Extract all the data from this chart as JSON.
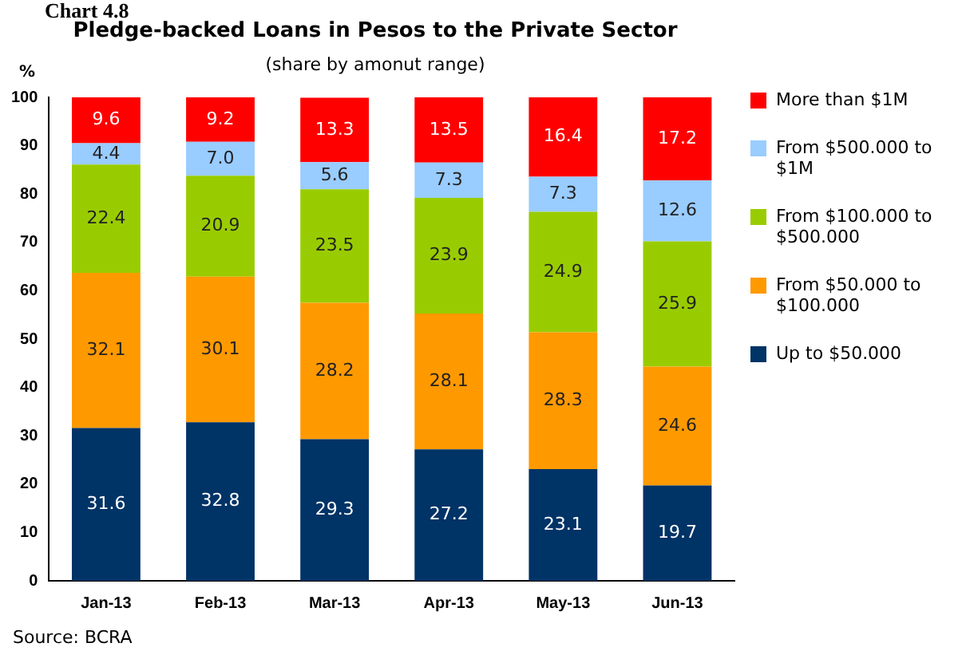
{
  "chart_data": {
    "type": "bar",
    "stacked": true,
    "title": "Pledge-backed Loans in Pesos to the Private Sector",
    "subtitle": "(share by amonut range)",
    "ylabel": "%",
    "annotations": [
      "Chart 4.8",
      "Source: BCRA"
    ],
    "categories": [
      "Jan-13",
      "Feb-13",
      "Mar-13",
      "Apr-13",
      "May-13",
      "Jun-13"
    ],
    "ylim": [
      0,
      100
    ],
    "yticks": [
      0,
      10,
      20,
      30,
      40,
      50,
      60,
      70,
      80,
      90,
      100
    ],
    "grid": false,
    "legend": "right",
    "series": [
      {
        "name": "Up to $50.000",
        "color": "#003366",
        "values": [
          31.6,
          32.8,
          29.3,
          27.2,
          23.1,
          19.7
        ],
        "value_labels": [
          "31.6",
          "32.8",
          "29.3",
          "27.2",
          "23.1",
          "19.7"
        ]
      },
      {
        "name": "From $50.000 to $100.000",
        "color": "#ff9900",
        "values": [
          32.1,
          30.1,
          28.2,
          28.1,
          28.3,
          24.6
        ],
        "value_labels": [
          "32.1",
          "30.1",
          "28.2",
          "28.1",
          "28.3",
          "24.6"
        ]
      },
      {
        "name": "From $100.000 to $500.000",
        "color": "#99cc00",
        "values": [
          22.4,
          20.9,
          23.5,
          23.9,
          24.9,
          25.9
        ],
        "value_labels": [
          "22.4",
          "20.9",
          "23.5",
          "23.9",
          "24.9",
          "25.9"
        ]
      },
      {
        "name": "From $500.000 to $1M",
        "color": "#99ccff",
        "values": [
          4.4,
          7.0,
          5.6,
          7.3,
          7.3,
          12.6
        ],
        "value_labels": [
          "4.4",
          "7.0",
          "5.6",
          "7.3",
          "7.3",
          "12.6"
        ]
      },
      {
        "name": "More than $1M",
        "color": "#ff0000",
        "values": [
          9.6,
          9.2,
          13.3,
          13.5,
          16.4,
          17.2
        ],
        "value_labels": [
          "9.6",
          "9.2",
          "13.3",
          "13.5",
          "16.4",
          "17.2"
        ]
      }
    ]
  }
}
